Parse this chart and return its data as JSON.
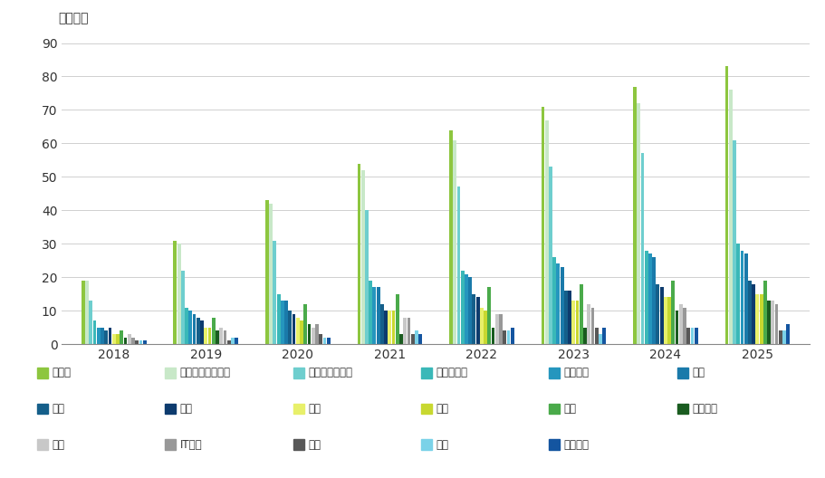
{
  "ylabel": "百亿美元",
  "ylim": [
    0,
    90
  ],
  "yticks": [
    0,
    10,
    20,
    30,
    40,
    50,
    60,
    70,
    80,
    90
  ],
  "years": [
    2018,
    2019,
    2020,
    2021,
    2022,
    2023,
    2024,
    2025
  ],
  "categories": [
    "制造业",
    "通信，传媒与服务",
    "自然资源与材料",
    "消费者产品",
    "医疗健康",
    "银行",
    "交通",
    "汽车",
    "贸易",
    "零售",
    "能源",
    "生命科学",
    "政府",
    "IT硬件",
    "教育",
    "保险",
    "公用事业"
  ],
  "colors": [
    "#8dc63f",
    "#c8e8c8",
    "#6ecece",
    "#3ab8b8",
    "#2596be",
    "#1a7aaa",
    "#155f8a",
    "#0d3b6e",
    "#e8f06a",
    "#c8d830",
    "#4aaa4a",
    "#1a5c20",
    "#c8c8c8",
    "#989898",
    "#585858",
    "#7ad2e8",
    "#1455a0"
  ],
  "data": {
    "制造业": [
      19,
      31,
      43,
      54,
      64,
      71,
      77,
      83
    ],
    "通信，传媒与服务": [
      19,
      30,
      42,
      52,
      61,
      67,
      72,
      76
    ],
    "自然资源与材料": [
      13,
      22,
      31,
      40,
      47,
      53,
      57,
      61
    ],
    "消费者产品": [
      7,
      11,
      15,
      19,
      22,
      26,
      28,
      30
    ],
    "医疗健康": [
      5,
      10,
      13,
      17,
      21,
      24,
      27,
      28
    ],
    "银行": [
      5,
      9,
      13,
      17,
      20,
      23,
      26,
      27
    ],
    "交通": [
      4,
      8,
      10,
      12,
      15,
      16,
      18,
      19
    ],
    "汽车": [
      5,
      7,
      9,
      10,
      14,
      16,
      17,
      18
    ],
    "贸易": [
      3,
      5,
      8,
      10,
      11,
      13,
      14,
      15
    ],
    "零售": [
      3,
      5,
      7,
      10,
      10,
      13,
      14,
      15
    ],
    "能源": [
      4,
      8,
      12,
      15,
      17,
      18,
      19,
      19
    ],
    "生命科学": [
      2,
      4,
      6,
      3,
      5,
      5,
      10,
      13
    ],
    "政府": [
      3,
      5,
      5,
      8,
      9,
      12,
      12,
      13
    ],
    "IT硬件": [
      2,
      4,
      6,
      8,
      9,
      11,
      11,
      12
    ],
    "教育": [
      1,
      1,
      3,
      3,
      4,
      5,
      5,
      4
    ],
    "保险": [
      1,
      2,
      2,
      4,
      4,
      3,
      5,
      4
    ],
    "公用事业": [
      1,
      2,
      2,
      3,
      5,
      5,
      5,
      6
    ]
  },
  "background_color": "#ffffff",
  "grid_color": "#d0d0d0",
  "legend_rows": [
    [
      "制造业",
      "通信，传媒与服务",
      "自然资源与材料",
      "消费者产品",
      "医疗健康",
      "银行"
    ],
    [
      "交通",
      "汽车",
      "贸易",
      "零售",
      "能源",
      "生命科学"
    ],
    [
      "政府",
      "IT硬件",
      "教育",
      "保险",
      "公用事业"
    ]
  ]
}
